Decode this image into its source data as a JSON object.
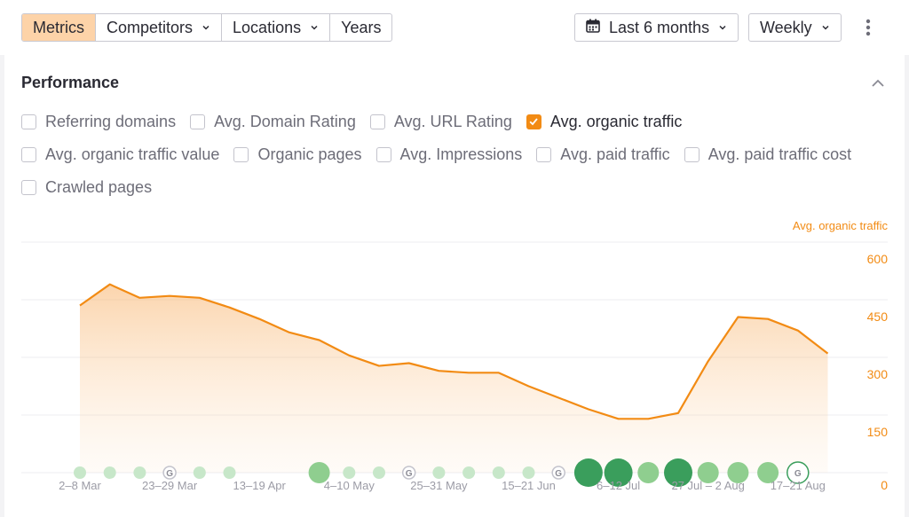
{
  "toolbar": {
    "segments": [
      {
        "label": "Metrics",
        "active": true,
        "dropdown": false
      },
      {
        "label": "Competitors",
        "active": false,
        "dropdown": true
      },
      {
        "label": "Locations",
        "active": false,
        "dropdown": true
      },
      {
        "label": "Years",
        "active": false,
        "dropdown": false
      }
    ],
    "date_range": "Last 6 months",
    "interval": "Weekly",
    "calendar_icon": "calendar-icon",
    "more_icon": "more-vertical-icon"
  },
  "performance": {
    "title": "Performance",
    "collapse_icon": "chevron-up-icon",
    "metrics": [
      [
        {
          "label": "Referring domains",
          "checked": false
        },
        {
          "label": "Avg. Domain Rating",
          "checked": false
        },
        {
          "label": "Avg. URL Rating",
          "checked": false
        },
        {
          "label": "Avg. organic traffic",
          "checked": true
        }
      ],
      [
        {
          "label": "Avg. organic traffic value",
          "checked": false
        },
        {
          "label": "Organic pages",
          "checked": false
        },
        {
          "label": "Avg. Impressions",
          "checked": false
        },
        {
          "label": "Avg. paid traffic",
          "checked": false
        },
        {
          "label": "Avg. paid traffic cost",
          "checked": false
        }
      ],
      [
        {
          "label": "Crawled pages",
          "checked": false
        }
      ]
    ]
  },
  "colors": {
    "accent": "#f28b14",
    "active_segment": "#fdd3a8",
    "update_marker": "#3a9e5c"
  },
  "chart_data": {
    "type": "area",
    "series": [
      {
        "name": "Avg. organic traffic",
        "values": [
          435,
          490,
          455,
          460,
          455,
          430,
          400,
          365,
          345,
          305,
          278,
          285,
          265,
          260,
          260,
          225,
          195,
          165,
          140,
          140,
          155,
          290,
          405,
          400,
          370,
          310
        ]
      }
    ],
    "y_axis_ticks": [
      "600",
      "450",
      "300",
      "150",
      "0"
    ],
    "ylim": [
      0,
      600
    ],
    "x_tick_labels": [
      "2–8 Mar",
      "23–29 Mar",
      "13–19 Apr",
      "4–10 May",
      "25–31 May",
      "15–21 Jun",
      "6–12 Jul",
      "27 Jul – 2 Aug",
      "17–21 Aug"
    ],
    "x_tick_positions": [
      0,
      3,
      6,
      9,
      12,
      15,
      18,
      21,
      24
    ],
    "update_markers": [
      {
        "week": 0,
        "size": "s",
        "google": false
      },
      {
        "week": 1,
        "size": "s",
        "google": false
      },
      {
        "week": 2,
        "size": "s",
        "google": false
      },
      {
        "week": 3,
        "size": "s",
        "google": true
      },
      {
        "week": 4,
        "size": "s",
        "google": false
      },
      {
        "week": 5,
        "size": "s",
        "google": false
      },
      {
        "week": 8,
        "size": "m",
        "google": false
      },
      {
        "week": 9,
        "size": "s",
        "google": false
      },
      {
        "week": 10,
        "size": "s",
        "google": false
      },
      {
        "week": 11,
        "size": "s",
        "google": true
      },
      {
        "week": 12,
        "size": "s",
        "google": false
      },
      {
        "week": 13,
        "size": "s",
        "google": false
      },
      {
        "week": 14,
        "size": "s",
        "google": false
      },
      {
        "week": 15,
        "size": "s",
        "google": false
      },
      {
        "week": 16,
        "size": "s",
        "google": true
      },
      {
        "week": 17,
        "size": "l",
        "google": false
      },
      {
        "week": 18,
        "size": "l",
        "google": false
      },
      {
        "week": 19,
        "size": "m",
        "google": false
      },
      {
        "week": 20,
        "size": "l",
        "google": false
      },
      {
        "week": 21,
        "size": "m",
        "google": false
      },
      {
        "week": 22,
        "size": "m",
        "google": false
      },
      {
        "week": 23,
        "size": "m",
        "google": false
      },
      {
        "week": 24,
        "size": "m",
        "google": true
      }
    ],
    "grid": true,
    "legend": "top-right"
  }
}
